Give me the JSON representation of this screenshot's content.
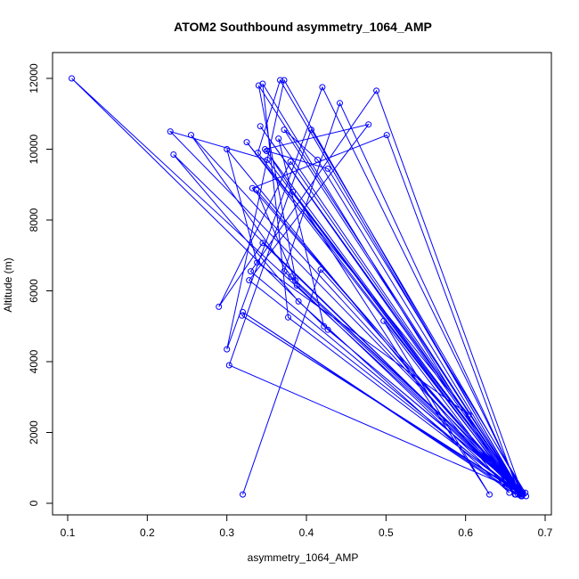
{
  "chart_data": {
    "type": "scatter",
    "title": "ATOM2 Southbound asymmetry_1064_AMP",
    "xlabel": "asymmetry_1064_AMP",
    "ylabel": "Altitude (m)",
    "xlim": [
      0.1,
      0.7
    ],
    "ylim": [
      0,
      12000
    ],
    "xticks": [
      "0.1",
      "0.2",
      "0.3",
      "0.4",
      "0.5",
      "0.6",
      "0.7"
    ],
    "yticks": [
      "0",
      "2000",
      "4000",
      "6000",
      "8000",
      "10000",
      "12000"
    ],
    "line_color": "#0000ff",
    "point_style": "open-circle",
    "series": [
      {
        "x": [
          0.671,
          0.365,
          0.422,
          0.671,
          0.342,
          0.671,
          0.67,
          0.372,
          0.3,
          0.42,
          0.671,
          0.488,
          0.33,
          0.67,
          0.348,
          0.478,
          0.328,
          0.671,
          0.372,
          0.414,
          0.669,
          0.38,
          0.29,
          0.345,
          0.671,
          0.367,
          0.339,
          0.668,
          0.337,
          0.386,
          0.672,
          0.303,
          0.406,
          0.676,
          0.319,
          0.671,
          0.34,
          0.388,
          0.663,
          0.32,
          0.666,
          0.383,
          0.67,
          0.442,
          0.372,
          0.671,
          0.332,
          0.501,
          0.667,
          0.377,
          0.345,
          0.662,
          0.497,
          0.63,
          0.35,
          0.427,
          0.675,
          0.381,
          0.255,
          0.67,
          0.325,
          0.604,
          0.338,
          0.3,
          0.655,
          0.39,
          0.233,
          0.67,
          0.351,
          0.229,
          0.672,
          0.427,
          0.105,
          0.67,
          0.418,
          0.32
        ],
        "y": [
          250,
          10300,
          5000,
          300,
          10650,
          200,
          250,
          11950,
          4350,
          11750,
          300,
          11650,
          6550,
          200,
          10000,
          10700,
          6300,
          250,
          10550,
          9700,
          300,
          9650,
          5550,
          7350,
          250,
          11950,
          9900,
          250,
          8850,
          6300,
          300,
          3900,
          10550,
          200,
          5300,
          250,
          11800,
          6150,
          250,
          5400,
          250,
          8800,
          300,
          11300,
          6550,
          250,
          8900,
          10400,
          300,
          5250,
          11850,
          250,
          5150,
          250,
          9950,
          9450,
          300,
          6400,
          10400,
          200,
          10200,
          2500,
          6800,
          10000,
          300,
          5700,
          9850,
          250,
          9700,
          10500,
          300,
          4900,
          12000,
          250,
          6600,
          250
        ]
      }
    ]
  }
}
